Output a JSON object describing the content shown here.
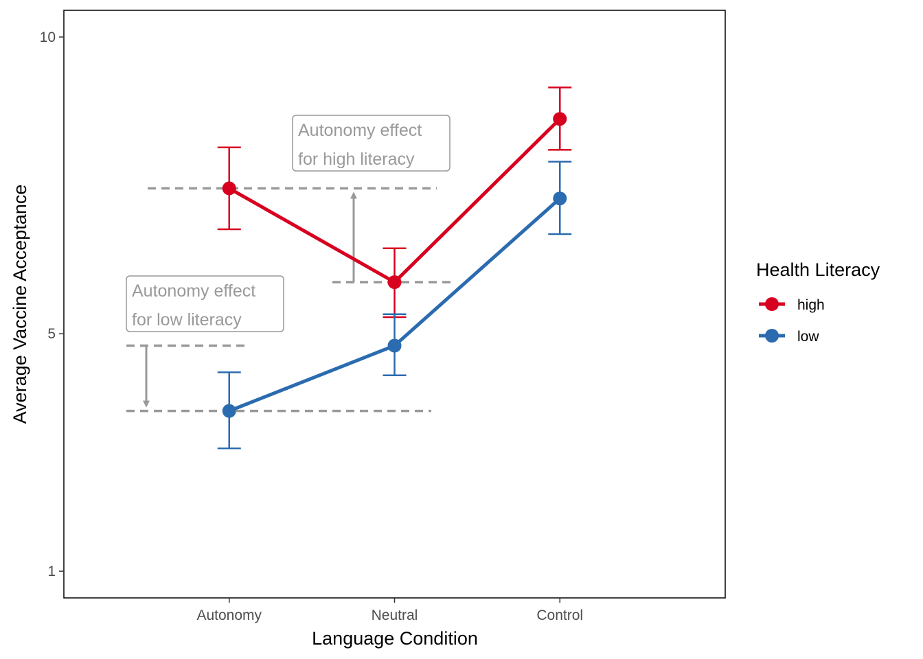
{
  "chart_data": {
    "type": "line",
    "xlabel": "Language Condition",
    "ylabel": "Average Vaccine Acceptance",
    "categories": [
      "Autonomy",
      "Neutral",
      "Control"
    ],
    "ylim": [
      0.55,
      10.45
    ],
    "yticks": [
      1,
      5,
      10
    ],
    "grid": false,
    "legend": {
      "title": "Health Literacy",
      "position": "right"
    },
    "series": [
      {
        "name": "high",
        "color": "#D7001F",
        "values": [
          7.45,
          5.87,
          8.62
        ],
        "lower": [
          6.76,
          5.28,
          8.1
        ],
        "upper": [
          8.14,
          6.44,
          9.15
        ]
      },
      {
        "name": "low",
        "color": "#2B6BAF",
        "values": [
          3.7,
          4.8,
          7.28
        ],
        "lower": [
          3.07,
          4.3,
          6.68
        ],
        "upper": [
          4.35,
          5.33,
          7.9
        ]
      }
    ],
    "annotations": [
      {
        "label_lines": [
          "Autonomy effect",
          "for high literacy"
        ],
        "from": 5.87,
        "to": 7.45,
        "arrow_direction": "up"
      },
      {
        "label_lines": [
          "Autonomy effect",
          "for low literacy"
        ],
        "from": 4.8,
        "to": 3.7,
        "arrow_direction": "down"
      }
    ]
  }
}
